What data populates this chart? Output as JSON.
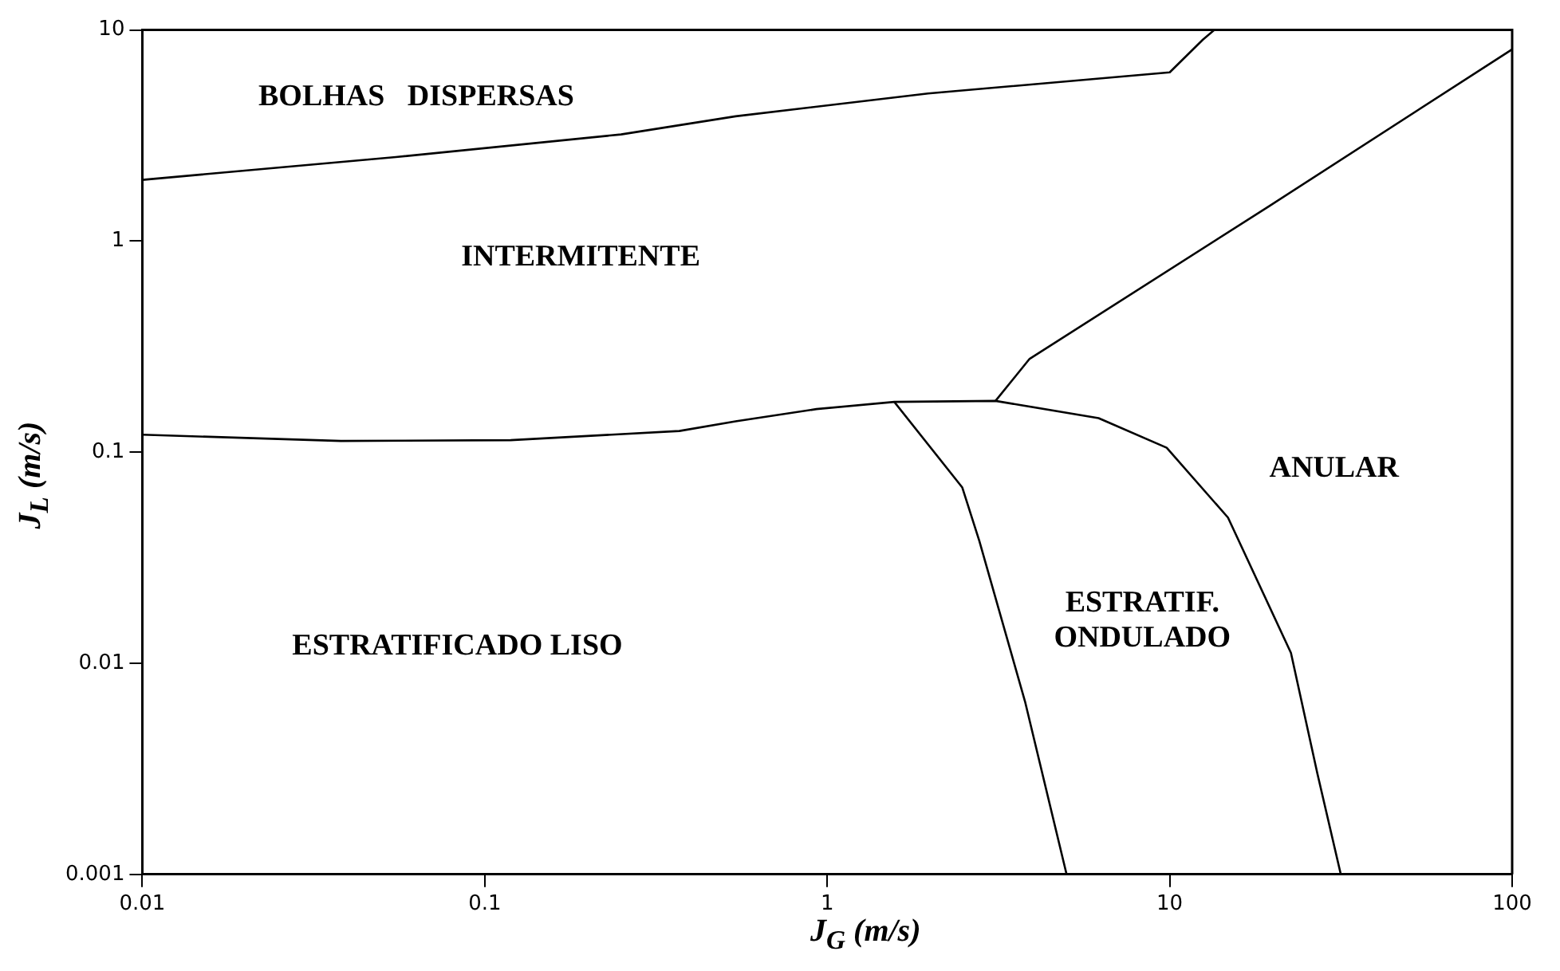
{
  "chart_data": {
    "type": "line",
    "xlabel": "J$_{G}$ (m/s)",
    "ylabel": "J$_{L}$ (m/s)",
    "log": "xy",
    "grid": false,
    "legend": false,
    "marker": "none",
    "line_style": "solid",
    "xlim": [
      0.01,
      100
    ],
    "ylim": [
      0.001,
      10
    ],
    "xticks": [
      0.01,
      0.1,
      1,
      10,
      100
    ],
    "yticks": [
      0.001,
      0.01,
      0.1,
      1,
      10
    ],
    "series": [
      {
        "color": "#000000",
        "x": [
          0.01,
          0.055,
          0.25,
          0.54,
          1.97,
          10,
          12.5,
          13.5
        ],
        "values": [
          1.95,
          2.5,
          3.2,
          3.9,
          5.0,
          6.3,
          9.0,
          10
        ]
      },
      {
        "color": "#000000",
        "x": [
          0.01,
          0.038,
          0.119,
          0.37,
          0.54,
          0.93,
          1.57,
          3.1,
          6.2,
          9.8,
          14.8,
          22.6,
          27,
          31.6
        ],
        "values": [
          0.121,
          0.113,
          0.114,
          0.126,
          0.14,
          0.16,
          0.173,
          0.175,
          0.145,
          0.105,
          0.049,
          0.0112,
          0.003,
          0.001
        ]
      },
      {
        "color": "#000000",
        "x": [
          1.57,
          2.48,
          2.78,
          3.78,
          5.0
        ],
        "values": [
          0.173,
          0.068,
          0.038,
          0.0066,
          0.001
        ]
      },
      {
        "color": "#000000",
        "x": [
          3.1,
          3.9,
          19.6,
          100
        ],
        "values": [
          0.175,
          0.277,
          1.47,
          8.1
        ]
      }
    ],
    "annotations": [
      "BOLHAS   DISPERSAS",
      "INTERMITENTE",
      "ANULAR",
      "ESTRATIFICADO LISO",
      "ESTRATIF.\nONDULADO"
    ]
  }
}
